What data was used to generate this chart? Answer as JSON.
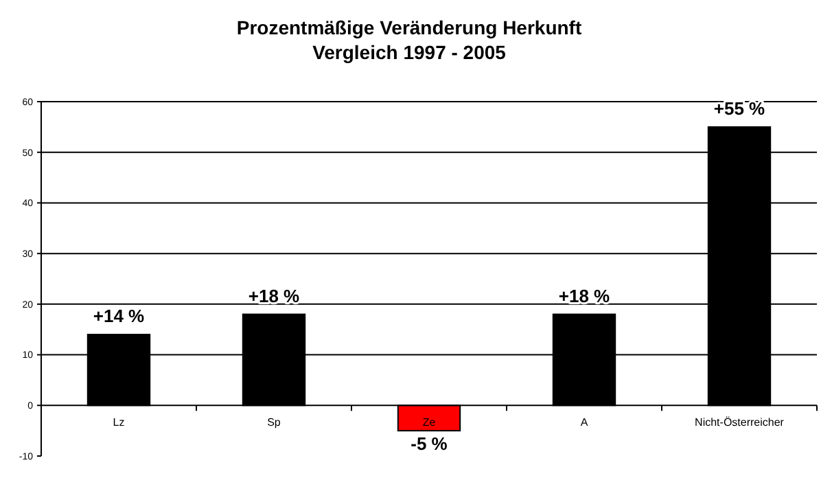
{
  "chart_data": {
    "type": "bar",
    "title": "Prozentmäßige Veränderung Herkunft\nVergleich 1997 - 2005",
    "categories": [
      "Lz",
      "Sp",
      "Ze",
      "A",
      "Nicht-Österreicher"
    ],
    "values": [
      14,
      18,
      -5,
      18,
      55
    ],
    "colors": [
      "#000000",
      "#000000",
      "#ff0000",
      "#000000",
      "#000000"
    ],
    "value_labels": [
      "+14 %",
      "+18 %",
      "-5 %",
      "+18 %",
      "+55 %"
    ],
    "ylim": [
      -10,
      60
    ],
    "yticks": [
      -10,
      0,
      10,
      20,
      30,
      40,
      50,
      60
    ],
    "grid": "y"
  }
}
